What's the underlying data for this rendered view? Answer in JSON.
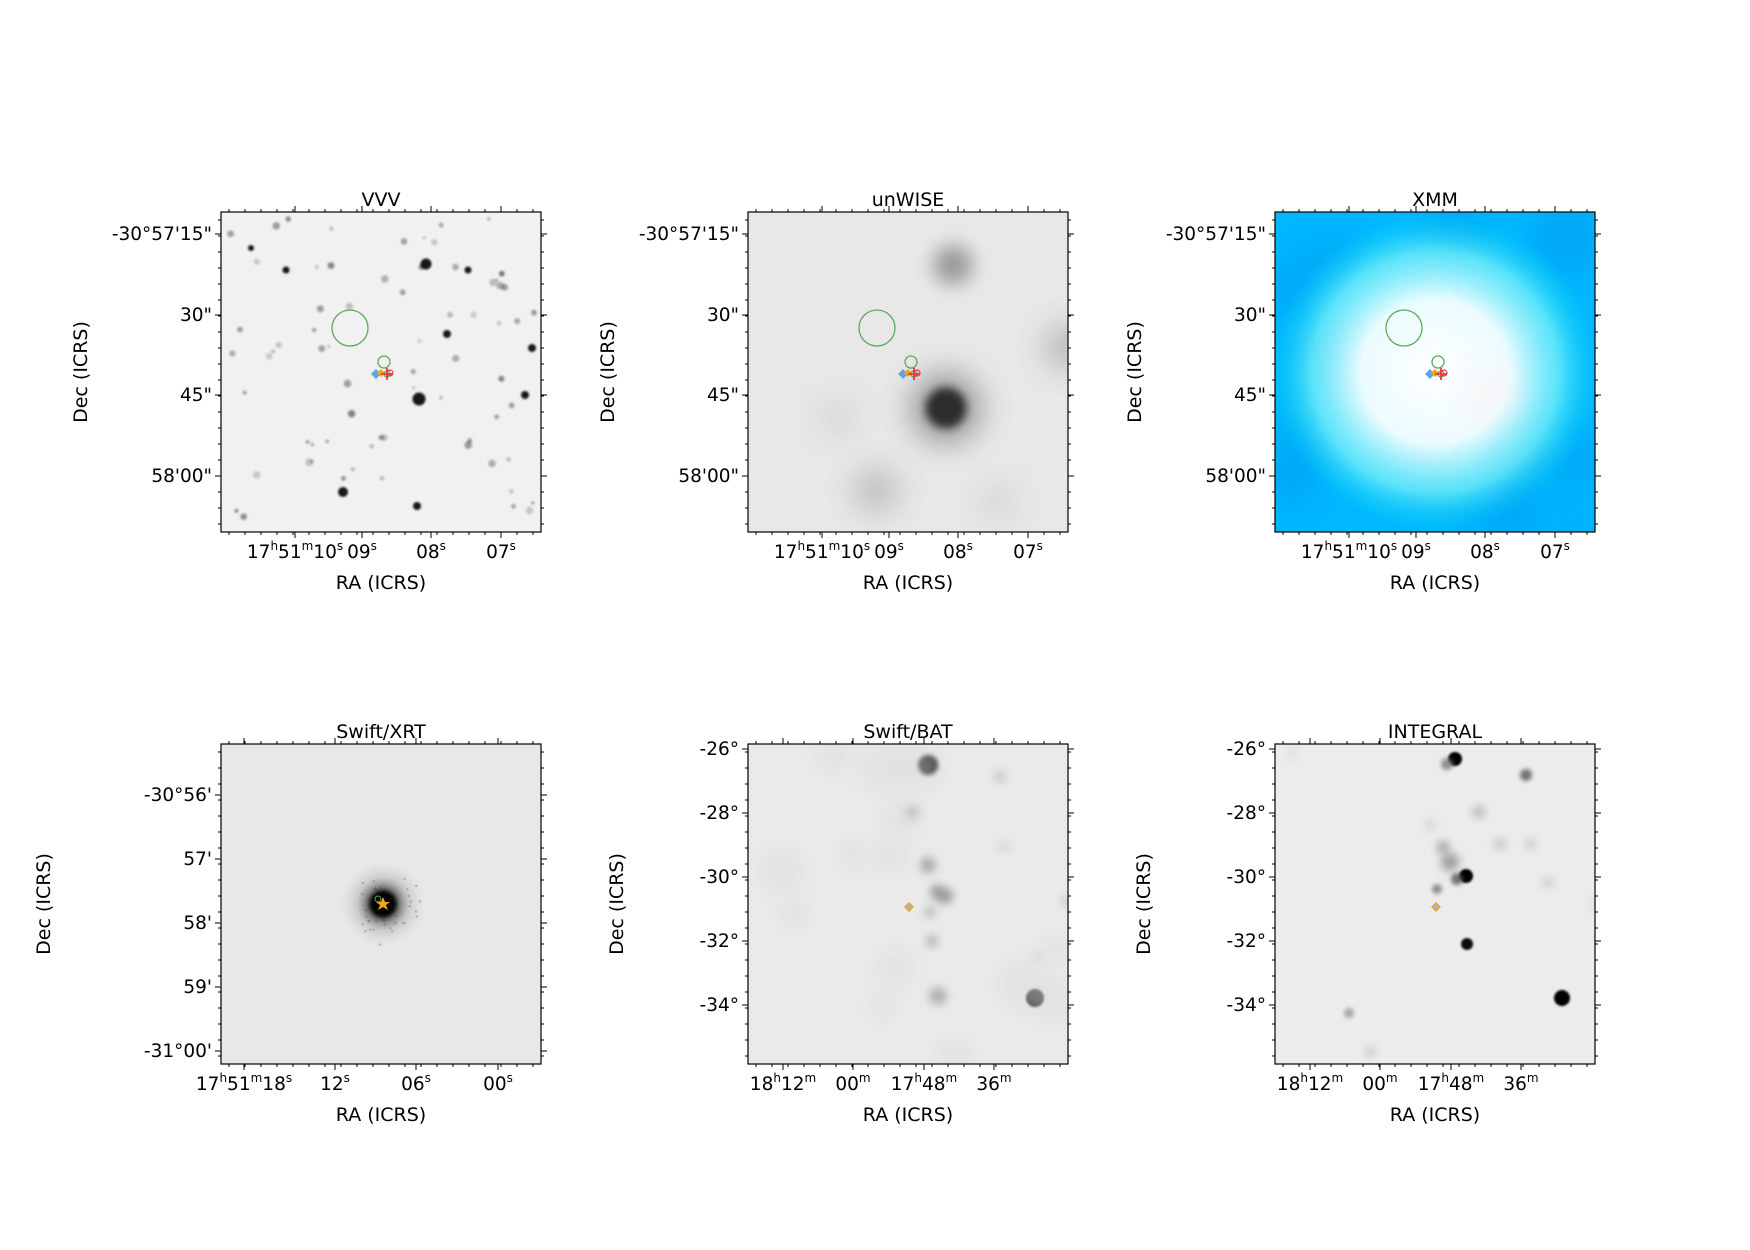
{
  "panels": [
    {
      "title": "VVV",
      "style": "vvv",
      "background": "#f1f1f1",
      "xlabel": "RA (ICRS)",
      "ylabel": "Dec (ICRS)",
      "yticks": [
        "-30°57'15\"",
        "30\"",
        "45\"",
        "58'00\""
      ],
      "xticks": [
        [
          "17",
          "h",
          "51",
          "m",
          "10",
          "s"
        ],
        [
          "09",
          "s"
        ],
        [
          "08",
          "s"
        ],
        [
          "07",
          "s"
        ]
      ],
      "markers": "full"
    },
    {
      "title": "unWISE",
      "style": "unwise",
      "background": "#e8e8e8",
      "xlabel": "RA (ICRS)",
      "ylabel": "Dec (ICRS)",
      "yticks": [
        "-30°57'15\"",
        "30\"",
        "45\"",
        "58'00\""
      ],
      "xticks": [
        [
          "17",
          "h",
          "51",
          "m",
          "10",
          "s"
        ],
        [
          "09",
          "s"
        ],
        [
          "08",
          "s"
        ],
        [
          "07",
          "s"
        ]
      ],
      "markers": "full"
    },
    {
      "title": "XMM",
      "style": "xmm",
      "background": "#00b8ff",
      "xlabel": "RA (ICRS)",
      "ylabel": "Dec (ICRS)",
      "yticks": [
        "-30°57'15\"",
        "30\"",
        "45\"",
        "58'00\""
      ],
      "xticks": [
        [
          "17",
          "h",
          "51",
          "m",
          "10",
          "s"
        ],
        [
          "09",
          "s"
        ],
        [
          "08",
          "s"
        ],
        [
          "07",
          "s"
        ]
      ],
      "markers": "full"
    },
    {
      "title": "Swift/XRT",
      "style": "xrt",
      "background": "#e8e8e8",
      "xlabel": "RA (ICRS)",
      "ylabel": "Dec (ICRS)",
      "yticks": [
        "-30°56'",
        "57'",
        "58'",
        "59'",
        "-31°00'"
      ],
      "xticks": [
        [
          "17",
          "h",
          "51",
          "m",
          "18",
          "s"
        ],
        [
          "12",
          "s"
        ],
        [
          "06",
          "s"
        ],
        [
          "00",
          "s"
        ]
      ],
      "markers": "xrt"
    },
    {
      "title": "Swift/BAT",
      "style": "bat",
      "background": "#eaeaea",
      "xlabel": "RA (ICRS)",
      "ylabel": "Dec (ICRS)",
      "yticks": [
        "-26°",
        "-28°",
        "-30°",
        "-32°",
        "-34°"
      ],
      "xticks": [
        [
          "18",
          "h",
          "12",
          "m"
        ],
        [
          "00",
          "m"
        ],
        [
          "17",
          "h",
          "48",
          "m"
        ],
        [
          "36",
          "m"
        ]
      ],
      "markers": "diamond"
    },
    {
      "title": "INTEGRAL",
      "style": "integral",
      "background": "#ececec",
      "xlabel": "RA (ICRS)",
      "ylabel": "Dec (ICRS)",
      "yticks": [
        "-26°",
        "-28°",
        "-30°",
        "-32°",
        "-34°"
      ],
      "xticks": [
        [
          "18",
          "h",
          "12",
          "m"
        ],
        [
          "00",
          "m"
        ],
        [
          "17",
          "h",
          "48",
          "m"
        ],
        [
          "36",
          "m"
        ]
      ],
      "markers": "diamond"
    }
  ],
  "marker_colors": {
    "circle": "#5aab5a",
    "diamond_blue": "#5aa7e8",
    "diamond_orange": "#f5a31a",
    "cross_red": "#e8383d"
  }
}
